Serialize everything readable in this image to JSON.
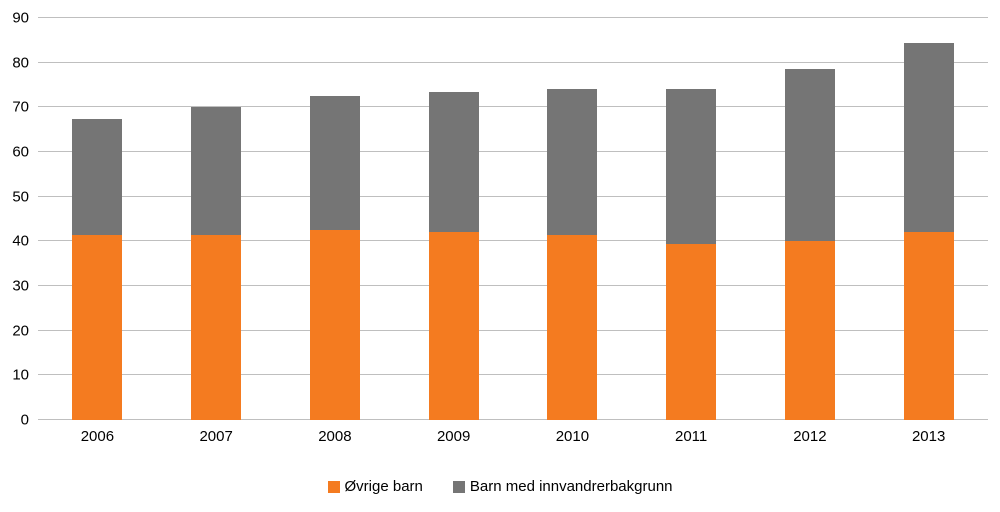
{
  "chart_data": {
    "type": "bar",
    "stacked": true,
    "title": "",
    "xlabel": "",
    "ylabel": "",
    "categories": [
      "2006",
      "2007",
      "2008",
      "2009",
      "2010",
      "2011",
      "2012",
      "2013"
    ],
    "series": [
      {
        "name": "Øvrige barn",
        "color": "#f47b20",
        "values": [
          41.5,
          41.5,
          42.5,
          42,
          41.5,
          39.5,
          40,
          42
        ]
      },
      {
        "name": "Barn med innvandrerbakgrunn",
        "color": "#757575",
        "values": [
          26,
          28.5,
          30,
          31.5,
          32.5,
          34.5,
          38.5,
          42.5
        ]
      }
    ],
    "totals": [
      67.5,
      70,
      72.5,
      73.5,
      74,
      74,
      78.5,
      84.5
    ],
    "ylim": [
      0,
      90
    ],
    "ytick_step": 10,
    "ytick_labels": [
      "0",
      "10",
      "20",
      "30",
      "40",
      "50",
      "60",
      "70",
      "80",
      "90"
    ],
    "grid": true,
    "gridline_color": "#bfbfbf",
    "legend_position": "bottom"
  }
}
